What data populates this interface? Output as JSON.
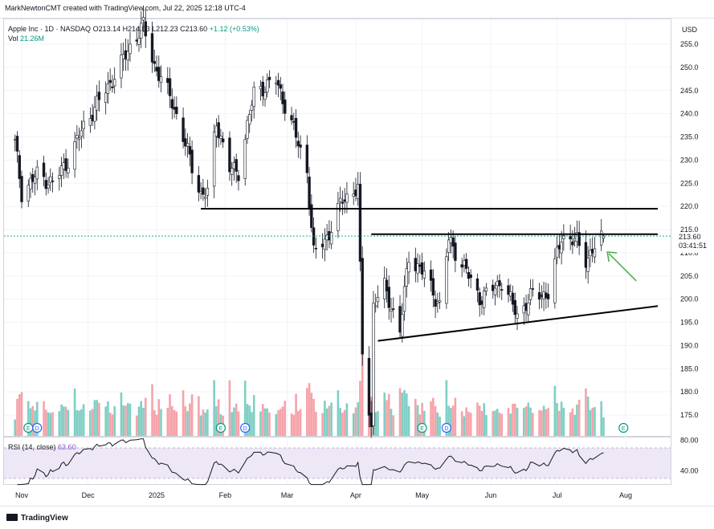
{
  "header": {
    "caption": "MarkNewtonCMT created with TradingView.com, Jul 22, 2025 12:18 UTC-4"
  },
  "legend": {
    "symbol": "Apple Inc · 1D · NASDAQ",
    "ohlc": "O213.14  H214.03  L212.23  C213.60",
    "change": "+1.12 (+0.53%)",
    "vol_label": "Vol",
    "vol_value": "21.26M"
  },
  "rsi_legend": {
    "label": "RSI (14, close)",
    "value": "63.60"
  },
  "currency": "USD",
  "last_price": {
    "price": "213.60",
    "countdown": "03:41:51"
  },
  "footer": {
    "brand": "TradingView"
  },
  "colors": {
    "up": "#089981",
    "down": "#f23645",
    "vol_up": "#7fcfc4",
    "vol_down": "#f5a3a9",
    "rsi_line": "#131722",
    "rsi_band": "#ede7f6",
    "arrow": "#4caf50",
    "trendline": "#000000"
  },
  "chart_data": [
    {
      "type": "candlestick",
      "title": "Apple Inc · 1D · NASDAQ",
      "y_axis": {
        "ticks": [
          175,
          180,
          185,
          190,
          195,
          200,
          205,
          210,
          215,
          220,
          225,
          230,
          235,
          240,
          245,
          250,
          255
        ],
        "ylim": [
          170,
          260
        ]
      },
      "x_axis": {
        "ticks": [
          "Nov",
          "Dec",
          "2025",
          "Feb",
          "Mar",
          "Apr",
          "May",
          "Jun",
          "Jul",
          "Aug"
        ]
      },
      "close_path": [
        [
          "2024-10-29",
          233.7
        ],
        [
          "2024-11-01",
          222.9
        ],
        [
          "2024-11-08",
          226.9
        ],
        [
          "2024-11-15",
          225.0
        ],
        [
          "2024-11-22",
          229.9
        ],
        [
          "2024-11-29",
          237.3
        ],
        [
          "2024-12-06",
          242.8
        ],
        [
          "2024-12-13",
          248.1
        ],
        [
          "2024-12-20",
          254.5
        ],
        [
          "2024-12-26",
          259.0
        ],
        [
          "2024-12-31",
          250.4
        ],
        [
          "2025-01-08",
          242.7
        ],
        [
          "2025-01-14",
          233.3
        ],
        [
          "2025-01-21",
          222.6
        ],
        [
          "2025-01-24",
          222.8
        ],
        [
          "2025-01-28",
          238.3
        ],
        [
          "2025-02-03",
          228.0
        ],
        [
          "2025-02-07",
          227.6
        ],
        [
          "2025-02-14",
          244.6
        ],
        [
          "2025-02-24",
          247.1
        ],
        [
          "2025-03-03",
          238.0
        ],
        [
          "2025-03-10",
          227.5
        ],
        [
          "2025-03-13",
          209.7
        ],
        [
          "2025-03-20",
          214.1
        ],
        [
          "2025-03-26",
          221.5
        ],
        [
          "2025-04-02",
          223.9
        ],
        [
          "2025-04-04",
          188.4
        ],
        [
          "2025-04-08",
          172.4
        ],
        [
          "2025-04-09",
          198.9
        ],
        [
          "2025-04-14",
          202.5
        ],
        [
          "2025-04-21",
          193.2
        ],
        [
          "2025-04-25",
          209.3
        ],
        [
          "2025-05-02",
          205.4
        ],
        [
          "2025-05-09",
          198.5
        ],
        [
          "2025-05-13",
          212.9
        ],
        [
          "2025-05-20",
          206.9
        ],
        [
          "2025-05-27",
          200.2
        ],
        [
          "2025-05-30",
          200.9
        ],
        [
          "2025-06-06",
          203.9
        ],
        [
          "2025-06-13",
          196.5
        ],
        [
          "2025-06-20",
          201.0
        ],
        [
          "2025-06-27",
          201.1
        ],
        [
          "2025-07-03",
          213.6
        ],
        [
          "2025-07-10",
          212.4
        ],
        [
          "2025-07-14",
          208.6
        ],
        [
          "2025-07-22",
          213.6
        ]
      ],
      "volume_m": {
        "range": [
          25,
          185
        ],
        "max_spike_date": "2025-04-04"
      },
      "annotations": [
        {
          "kind": "horizontal-line",
          "price": 219.5,
          "from": "2025-01-21",
          "to": "2025-08-01"
        },
        {
          "kind": "horizontal-line",
          "price": 214.0,
          "from": "2025-04-08",
          "to": "2025-08-01"
        },
        {
          "kind": "trend-line",
          "from": [
            "2025-04-11",
            191.0
          ],
          "to": [
            "2025-08-01",
            198.5
          ]
        },
        {
          "kind": "arrow",
          "at": "2025-07-23",
          "price": 210.5,
          "color": "green"
        }
      ]
    },
    {
      "type": "line",
      "title": "RSI (14, close)",
      "y_axis": {
        "ticks": [
          40,
          80
        ],
        "band": [
          30,
          70
        ]
      },
      "last_value": 63.6
    }
  ]
}
